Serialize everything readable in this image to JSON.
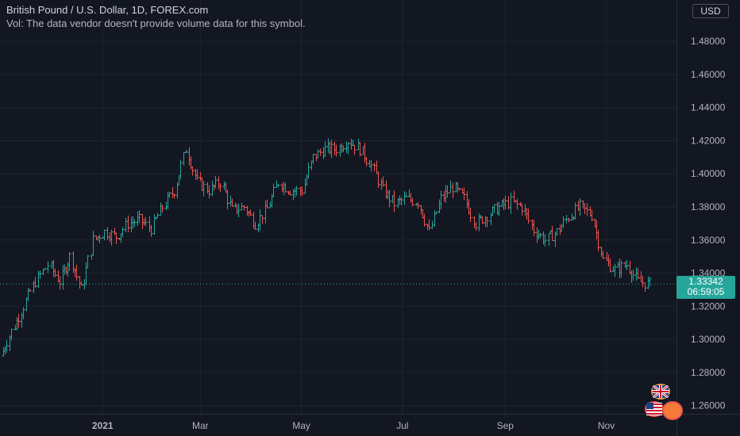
{
  "header": {
    "title": "British Pound / U.S. Dollar, 1D, FOREX.com",
    "volume_note": "Vol: The data vendor doesn't provide volume data for this symbol.",
    "currency_button": "USD"
  },
  "last_price": {
    "value": "1.33342",
    "countdown": "06:59:05"
  },
  "colors": {
    "up": "#26a69a",
    "down": "#ef5350",
    "background": "#131722",
    "grid": "#1f2330"
  },
  "icons": [
    "uk-flag-icon",
    "us-flag-icon"
  ],
  "chart_data": {
    "type": "ohlc-bar",
    "title": "British Pound / U.S. Dollar, 1D, FOREX.com",
    "xlabel": "",
    "ylabel": "",
    "x_ticks": [
      "2021",
      "Mar",
      "May",
      "Jul",
      "Sep",
      "Nov"
    ],
    "y_ticks": [
      "1.26000",
      "1.28000",
      "1.30000",
      "1.32000",
      "1.34000",
      "1.36000",
      "1.38000",
      "1.40000",
      "1.42000",
      "1.44000",
      "1.46000",
      "1.48000"
    ],
    "ylim": [
      1.255,
      1.505
    ],
    "last_price": 1.33342,
    "close_path": [
      [
        "2020-11-02",
        1.29
      ],
      [
        "2020-11-09",
        1.305
      ],
      [
        "2020-11-16",
        1.32
      ],
      [
        "2020-11-23",
        1.335
      ],
      [
        "2020-12-01",
        1.345
      ],
      [
        "2020-12-08",
        1.335
      ],
      [
        "2020-12-14",
        1.35
      ],
      [
        "2020-12-21",
        1.33
      ],
      [
        "2020-12-28",
        1.36
      ],
      [
        "2021-01-04",
        1.365
      ],
      [
        "2021-01-11",
        1.362
      ],
      [
        "2021-01-18",
        1.37
      ],
      [
        "2021-01-25",
        1.372
      ],
      [
        "2021-02-01",
        1.367
      ],
      [
        "2021-02-08",
        1.38
      ],
      [
        "2021-02-15",
        1.39
      ],
      [
        "2021-02-22",
        1.415
      ],
      [
        "2021-03-01",
        1.395
      ],
      [
        "2021-03-08",
        1.39
      ],
      [
        "2021-03-15",
        1.395
      ],
      [
        "2021-03-22",
        1.378
      ],
      [
        "2021-03-29",
        1.38
      ],
      [
        "2021-04-05",
        1.37
      ],
      [
        "2021-04-12",
        1.379
      ],
      [
        "2021-04-19",
        1.395
      ],
      [
        "2021-04-26",
        1.39
      ],
      [
        "2021-05-03",
        1.39
      ],
      [
        "2021-05-10",
        1.41
      ],
      [
        "2021-05-17",
        1.415
      ],
      [
        "2021-05-24",
        1.415
      ],
      [
        "2021-05-31",
        1.42
      ],
      [
        "2021-06-07",
        1.415
      ],
      [
        "2021-06-14",
        1.405
      ],
      [
        "2021-06-21",
        1.39
      ],
      [
        "2021-06-28",
        1.382
      ],
      [
        "2021-07-05",
        1.385
      ],
      [
        "2021-07-12",
        1.383
      ],
      [
        "2021-07-19",
        1.365
      ],
      [
        "2021-07-26",
        1.385
      ],
      [
        "2021-08-02",
        1.392
      ],
      [
        "2021-08-09",
        1.385
      ],
      [
        "2021-08-16",
        1.37
      ],
      [
        "2021-08-23",
        1.375
      ],
      [
        "2021-08-30",
        1.38
      ],
      [
        "2021-09-06",
        1.383
      ],
      [
        "2021-09-13",
        1.38
      ],
      [
        "2021-09-20",
        1.366
      ],
      [
        "2021-09-27",
        1.36
      ],
      [
        "2021-10-04",
        1.365
      ],
      [
        "2021-10-11",
        1.374
      ],
      [
        "2021-10-18",
        1.38
      ],
      [
        "2021-10-25",
        1.375
      ],
      [
        "2021-11-01",
        1.348
      ],
      [
        "2021-11-08",
        1.342
      ],
      [
        "2021-11-15",
        1.345
      ],
      [
        "2021-11-22",
        1.335
      ],
      [
        "2021-11-29",
        1.33342
      ]
    ]
  }
}
